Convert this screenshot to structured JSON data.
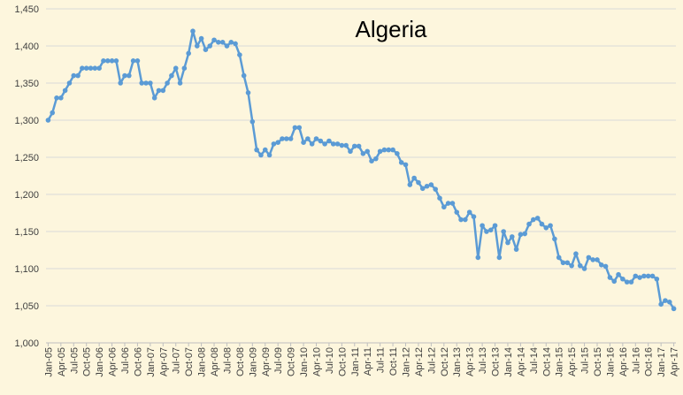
{
  "chart_data": {
    "type": "line",
    "title": "Algeria",
    "categories": [
      "Jan-05",
      null,
      null,
      "Apr-05",
      null,
      null,
      "Jul-05",
      null,
      null,
      "Oct-05",
      null,
      null,
      "Jan-06",
      null,
      null,
      "Apr-06",
      null,
      null,
      "Jul-06",
      null,
      null,
      "Oct-06",
      null,
      null,
      "Jan-07",
      null,
      null,
      "Apr-07",
      null,
      null,
      "Jul-07",
      null,
      null,
      "Oct-07",
      null,
      null,
      "Jan-08",
      null,
      null,
      "Apr-08",
      null,
      null,
      "Jul-08",
      null,
      null,
      "Oct-08",
      null,
      null,
      "Jan-09",
      null,
      null,
      "Apr-09",
      null,
      null,
      "Jul-09",
      null,
      null,
      "Oct-09",
      null,
      null,
      "Jan-10",
      null,
      null,
      "Apr-10",
      null,
      null,
      "Jul-10",
      null,
      null,
      "Oct-10",
      null,
      null,
      "Jan-11",
      null,
      null,
      "Apr-11",
      null,
      null,
      "Jul-11",
      null,
      null,
      "Oct-11",
      null,
      null,
      "Jan-12",
      null,
      null,
      "Apr-12",
      null,
      null,
      "Jul-12",
      null,
      null,
      "Oct-12",
      null,
      null,
      "Jan-13",
      null,
      null,
      "Apr-13",
      null,
      null,
      "Jul-13",
      null,
      null,
      "Oct-13",
      null,
      null,
      "Jan-14",
      null,
      null,
      "Apr-14",
      null,
      null,
      "Jul-14",
      null,
      null,
      "Oct-14",
      null,
      null,
      "Jan-15",
      null,
      null,
      "Apr-15",
      null,
      null,
      "Jul-15",
      null,
      null,
      "Oct-15",
      null,
      null,
      "Jan-16",
      null,
      null,
      "Apr-16",
      null,
      null,
      "Jul-16",
      null,
      null,
      "Oct-16",
      null,
      null,
      "Jan-17",
      null,
      null,
      "Apr-17"
    ],
    "series": [
      {
        "color": "#5b9bd5",
        "values": [
          1300,
          1310,
          1330,
          1330,
          1340,
          1350,
          1360,
          1360,
          1370,
          1370,
          1370,
          1370,
          1370,
          1380,
          1380,
          1380,
          1380,
          1350,
          1360,
          1360,
          1380,
          1380,
          1350,
          1350,
          1350,
          1330,
          1340,
          1340,
          1350,
          1360,
          1370,
          1350,
          1370,
          1390,
          1420,
          1400,
          1410,
          1395,
          1400,
          1408,
          1405,
          1405,
          1400,
          1405,
          1403,
          1388,
          1360,
          1337,
          1298,
          1260,
          1253,
          1260,
          1253,
          1268,
          1270,
          1275,
          1275,
          1275,
          1290,
          1290,
          1270,
          1275,
          1268,
          1275,
          1272,
          1268,
          1272,
          1268,
          1268,
          1266,
          1266,
          1258,
          1265,
          1265,
          1255,
          1258,
          1245,
          1248,
          1258,
          1260,
          1260,
          1260,
          1255,
          1243,
          1240,
          1213,
          1222,
          1216,
          1208,
          1211,
          1213,
          1207,
          1195,
          1183,
          1188,
          1188,
          1176,
          1166,
          1166,
          1176,
          1170,
          1115,
          1158,
          1150,
          1152,
          1158,
          1115,
          1150,
          1135,
          1143,
          1126,
          1146,
          1147,
          1160,
          1166,
          1168,
          1160,
          1155,
          1158,
          1140,
          1115,
          1108,
          1108,
          1104,
          1120,
          1104,
          1100,
          1115,
          1112,
          1112,
          1105,
          1103,
          1088,
          1083,
          1092,
          1086,
          1082,
          1082,
          1090,
          1088,
          1090,
          1090,
          1090,
          1086,
          1052,
          1057,
          1055,
          1046
        ]
      }
    ],
    "ylim": [
      1000,
      1450
    ],
    "yticks": [
      {
        "value": 1000,
        "label": "1,000"
      },
      {
        "value": 1050,
        "label": "1,050"
      },
      {
        "value": 1100,
        "label": "1,100"
      },
      {
        "value": 1150,
        "label": "1,150"
      },
      {
        "value": 1200,
        "label": "1,200"
      },
      {
        "value": 1250,
        "label": "1,250"
      },
      {
        "value": 1300,
        "label": "1,300"
      },
      {
        "value": 1350,
        "label": "1,350"
      },
      {
        "value": 1400,
        "label": "1,400"
      },
      {
        "value": 1450,
        "label": "1,450"
      }
    ],
    "grid": true
  }
}
